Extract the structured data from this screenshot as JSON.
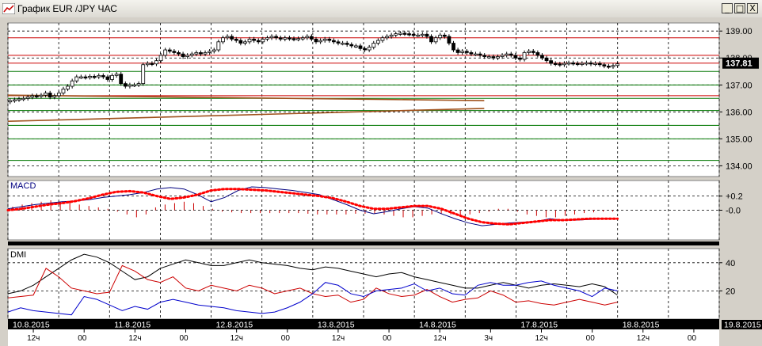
{
  "window": {
    "title": "График EUR /JPY ЧАС",
    "buttons": [
      "_",
      "□",
      "X"
    ]
  },
  "colors": {
    "background": "#ffffff",
    "bull_candle": "#ffffff",
    "bear_candle": "#000000",
    "red_levels": "#cc0000",
    "green_levels": "#007700",
    "macd_line": "#000080",
    "macd_signal": "#ff0000",
    "macd_histogram": "#cc0000",
    "dmi_adx": "#000000",
    "dmi_plus": "#cc0000",
    "dmi_minus": "#0000cc",
    "price_badge_bg": "#000000",
    "price_badge_text": "#ffffff"
  },
  "chart_data": [
    {
      "type": "candlestick",
      "panel": "price",
      "ylim": [
        133.6,
        139.3
      ],
      "yticks": [
        "139.00",
        "138.00",
        "137.00",
        "136.00",
        "135.00",
        "134.00"
      ],
      "last_price_label": "137.81",
      "red_levels": [
        138.75,
        138.1,
        137.81,
        136.6
      ],
      "green_levels": [
        137.5,
        137.0,
        136.5,
        136.05,
        135.5,
        135.0,
        134.2
      ],
      "close": [
        136.42,
        136.45,
        136.48,
        136.5,
        136.55,
        136.6,
        136.58,
        136.62,
        136.7,
        136.55,
        136.6,
        136.7,
        136.85,
        136.95,
        137.15,
        137.3,
        137.3,
        137.28,
        137.32,
        137.3,
        137.35,
        137.3,
        137.2,
        137.35,
        137.4,
        137.05,
        136.95,
        137.0,
        137.0,
        137.05,
        137.75,
        137.8,
        137.78,
        137.9,
        138.1,
        138.3,
        138.25,
        138.2,
        138.15,
        138.05,
        138.1,
        138.15,
        138.2,
        138.15,
        138.2,
        138.25,
        138.3,
        138.6,
        138.75,
        138.8,
        138.7,
        138.65,
        138.55,
        138.6,
        138.7,
        138.65,
        138.6,
        138.7,
        138.75,
        138.8,
        138.75,
        138.7,
        138.75,
        138.72,
        138.7,
        138.72,
        138.75,
        138.8,
        138.7,
        138.6,
        138.65,
        138.7,
        138.65,
        138.6,
        138.55,
        138.55,
        138.5,
        138.45,
        138.45,
        138.35,
        138.3,
        138.4,
        138.55,
        138.65,
        138.75,
        138.8,
        138.85,
        138.9,
        138.92,
        138.9,
        138.88,
        138.85,
        138.85,
        138.88,
        138.8,
        138.6,
        138.75,
        138.85,
        138.8,
        138.55,
        138.3,
        138.2,
        138.25,
        138.2,
        138.15,
        138.15,
        138.1,
        138.05,
        138.05,
        138.0,
        138.05,
        138.1,
        138.15,
        138.1,
        138.0,
        137.95,
        138.2,
        138.25,
        138.2,
        138.1,
        138.0,
        137.9,
        137.8,
        137.78,
        137.75,
        137.8,
        137.82,
        137.8,
        137.78,
        137.8,
        137.82,
        137.78,
        137.8,
        137.75,
        137.7,
        137.68,
        137.72,
        137.78
      ],
      "dates": [
        {
          "label": "10.8.2015",
          "idx": 0
        },
        {
          "label": "11.8.2015",
          "idx": 24
        },
        {
          "label": "12.8.2015",
          "idx": 48
        },
        {
          "label": "13.8.2015",
          "idx": 72
        },
        {
          "label": "14.8.2015",
          "idx": 96
        },
        {
          "label": "17.8.2015",
          "idx": 120
        },
        {
          "label": "18.8.2015",
          "idx": 144
        },
        {
          "label": "19.8.2015",
          "idx": 168
        }
      ],
      "hour_ticks": [
        "12ч",
        "00",
        "12ч",
        "00",
        "12ч",
        "00",
        "12ч",
        "00",
        "12ч",
        "3ч",
        "12ч",
        "00",
        "12ч",
        "00"
      ]
    },
    {
      "type": "line",
      "panel": "macd",
      "title": "MACD",
      "ylim": [
        -0.42,
        0.42
      ],
      "yticks": [
        "+0.2",
        "-0.0"
      ],
      "series": [
        {
          "role": "macd",
          "values": [
            0.02,
            0.05,
            0.08,
            0.1,
            0.12,
            0.13,
            0.15,
            0.18,
            0.2,
            0.22,
            0.25,
            0.3,
            0.32,
            0.3,
            0.22,
            0.12,
            0.18,
            0.28,
            0.33,
            0.32,
            0.3,
            0.28,
            0.25,
            0.22,
            0.15,
            0.08,
            0.0,
            -0.05,
            -0.02,
            0.02,
            0.05,
            0.03,
            -0.05,
            -0.12,
            -0.18,
            -0.22,
            -0.2,
            -0.18,
            -0.17,
            -0.16,
            -0.12,
            -0.14,
            -0.14,
            -0.13,
            -0.12,
            -0.12
          ]
        },
        {
          "role": "signal",
          "values": [
            0.0,
            0.02,
            0.05,
            0.08,
            0.1,
            0.13,
            0.17,
            0.22,
            0.26,
            0.27,
            0.25,
            0.2,
            0.16,
            0.18,
            0.22,
            0.28,
            0.3,
            0.3,
            0.29,
            0.28,
            0.26,
            0.24,
            0.22,
            0.2,
            0.17,
            0.12,
            0.06,
            0.02,
            0.02,
            0.04,
            0.06,
            0.06,
            0.02,
            -0.05,
            -0.12,
            -0.17,
            -0.19,
            -0.2,
            -0.18,
            -0.16,
            -0.14,
            -0.14,
            -0.13,
            -0.12,
            -0.12,
            -0.12
          ]
        }
      ],
      "histogram": [
        0.05,
        0.08,
        0.1,
        0.12,
        0.14,
        0.1,
        0.12,
        0.08,
        0.06,
        0.04,
        0.02,
        -0.02,
        -0.06,
        -0.1,
        -0.06,
        0.04,
        0.08,
        0.1,
        0.12,
        0.1,
        0.06,
        0.02,
        -0.02,
        -0.03,
        -0.04,
        -0.04,
        -0.04,
        -0.04,
        -0.04,
        -0.04,
        -0.04,
        -0.05,
        -0.06,
        -0.06,
        -0.06,
        -0.06,
        -0.05,
        -0.05,
        -0.05,
        -0.06,
        -0.08,
        -0.1,
        -0.1,
        -0.08,
        -0.06,
        -0.05,
        -0.06,
        -0.08,
        -0.06,
        -0.04,
        -0.02,
        0.02,
        0.02,
        -0.02,
        -0.06,
        -0.08,
        -0.1,
        -0.1,
        -0.08,
        -0.06,
        -0.04,
        -0.03,
        -0.02,
        -0.02
      ]
    },
    {
      "type": "line",
      "panel": "dmi",
      "title": "DMI",
      "ylim": [
        0,
        50
      ],
      "yticks": [
        "40",
        "20"
      ],
      "series": [
        {
          "role": "adx",
          "values": [
            18,
            20,
            24,
            30,
            36,
            42,
            46,
            44,
            40,
            34,
            28,
            30,
            36,
            39,
            42,
            40,
            38,
            38,
            40,
            42,
            40,
            39,
            38,
            36,
            35,
            37,
            36,
            34,
            32,
            30,
            32,
            33,
            30,
            28,
            26,
            24,
            22,
            22,
            24,
            26,
            24,
            22,
            24,
            25,
            24,
            23,
            25,
            23,
            17
          ]
        },
        {
          "role": "plus_di",
          "values": [
            15,
            16,
            17,
            36,
            30,
            22,
            20,
            18,
            19,
            38,
            34,
            28,
            26,
            30,
            22,
            20,
            24,
            22,
            20,
            24,
            22,
            18,
            20,
            22,
            18,
            16,
            17,
            12,
            14,
            22,
            18,
            16,
            17,
            21,
            16,
            12,
            14,
            15,
            20,
            17,
            12,
            13,
            11,
            10,
            12,
            14,
            12,
            10,
            12
          ]
        },
        {
          "role": "minus_di",
          "values": [
            5,
            8,
            6,
            5,
            4,
            3,
            16,
            14,
            10,
            6,
            9,
            7,
            12,
            14,
            12,
            10,
            9,
            8,
            6,
            5,
            4,
            5,
            8,
            12,
            18,
            26,
            24,
            18,
            16,
            20,
            21,
            22,
            25,
            20,
            22,
            18,
            17,
            24,
            26,
            24,
            24,
            26,
            27,
            24,
            22,
            20,
            16,
            22,
            20
          ]
        }
      ]
    }
  ]
}
